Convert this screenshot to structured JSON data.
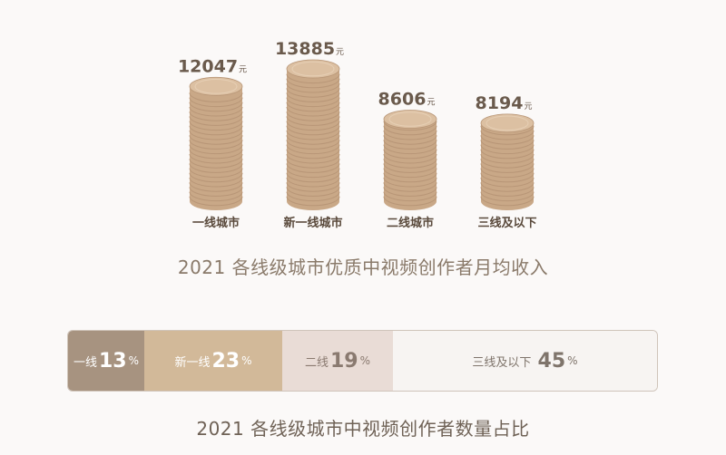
{
  "chart_data": [
    {
      "type": "bar",
      "title": "2021 各线级城市优质中视频创作者月均收入",
      "categories": [
        "一线城市",
        "新一线城市",
        "二线城市",
        "三线及以下"
      ],
      "values": [
        12047,
        13885,
        8606,
        8194
      ],
      "value_labels": [
        "12047",
        "13885",
        "8606",
        "8194"
      ],
      "unit": "元",
      "colors": {
        "coin_face": "#dcc0a2",
        "coin_edge": "#c9a887",
        "coin_line": "#b89677"
      }
    },
    {
      "type": "bar",
      "title": "2021 各线级城市中视频创作者数量占比",
      "categories": [
        "一线",
        "新一线",
        "二线",
        "三线及以下"
      ],
      "values": [
        13,
        23,
        19,
        45
      ],
      "value_labels": [
        "13",
        "23",
        "19",
        "45"
      ],
      "unit": "%",
      "colors": [
        "#a79380",
        "#d2b999",
        "#e9dcd6",
        "#f7f4f2"
      ]
    }
  ]
}
